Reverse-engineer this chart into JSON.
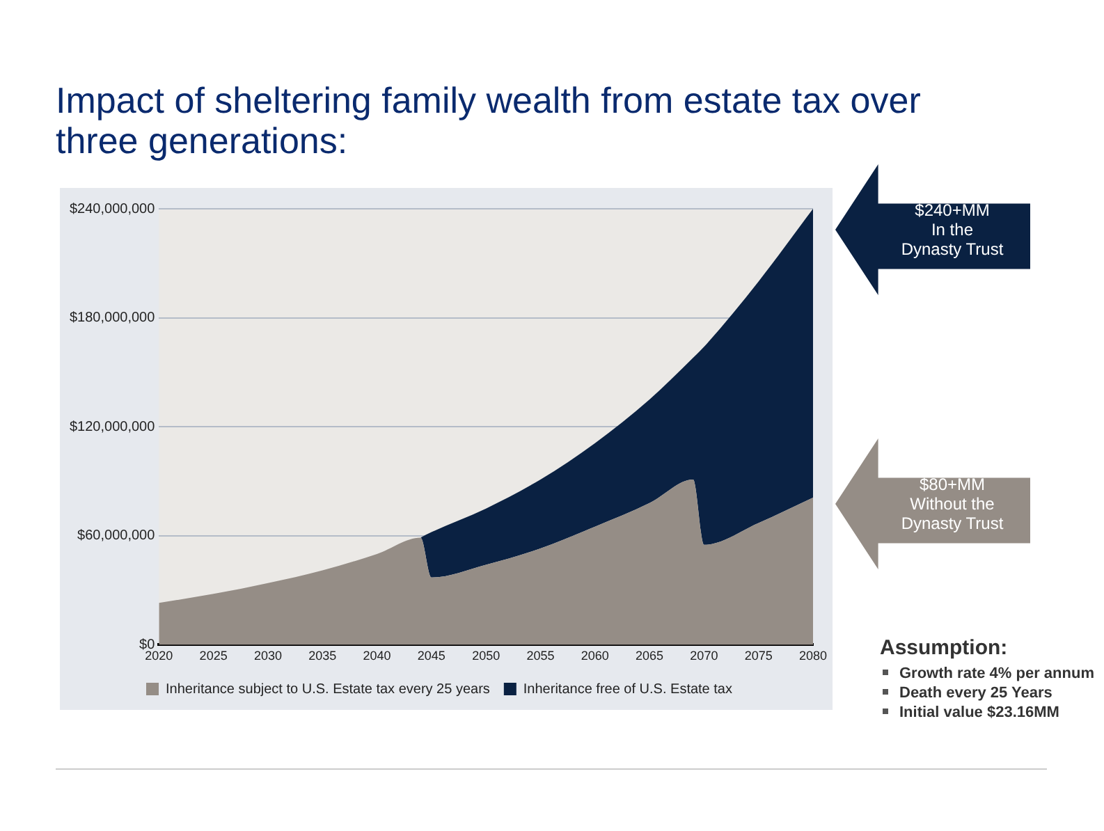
{
  "chart_data": {
    "type": "area",
    "title": "Impact of sheltering family wealth from estate tax over three generations:",
    "x": [
      2020,
      2025,
      2030,
      2035,
      2040,
      2044,
      2045,
      2050,
      2055,
      2060,
      2065,
      2069,
      2070,
      2075,
      2080
    ],
    "series": [
      {
        "name": "Inheritance subject to U.S. Estate tax every 25 years",
        "color": "#958d86",
        "values": [
          23000000,
          28000000,
          34000000,
          41000000,
          50000000,
          59000000,
          37000000,
          44000000,
          53000000,
          65000000,
          78000000,
          91000000,
          55000000,
          67000000,
          81000000
        ]
      },
      {
        "name": "Inheritance free of U.S. Estate tax",
        "color": "#0a2142",
        "values": [
          null,
          null,
          null,
          null,
          null,
          0,
          25000000,
          31000000,
          38000000,
          46000000,
          57000000,
          67000000,
          109000000,
          133000000,
          159000000
        ]
      }
    ],
    "stacked": true,
    "xlim": [
      2020,
      2080
    ],
    "xticks": [
      2020,
      2025,
      2030,
      2035,
      2040,
      2045,
      2050,
      2055,
      2060,
      2065,
      2070,
      2075,
      2080
    ],
    "ylim": [
      0,
      240000000
    ],
    "yticks": [
      {
        "value": 0,
        "label": "$0"
      },
      {
        "value": 60000000,
        "label": "$60,000,000"
      },
      {
        "value": 120000000,
        "label": "$120,000,000"
      },
      {
        "value": 180000000,
        "label": "$180,000,000"
      },
      {
        "value": 240000000,
        "label": "$240,000,000"
      }
    ],
    "grid": "y",
    "legend": "bottom",
    "annotations": [
      "$240+MM\nIn the\nDynasty Trust",
      "$80+MM\nWithout the\nDynasty Trust",
      "Assumption:",
      "Growth rate 4% per annum",
      "Death every 25 Years",
      "Initial value $23.16MM"
    ]
  }
}
